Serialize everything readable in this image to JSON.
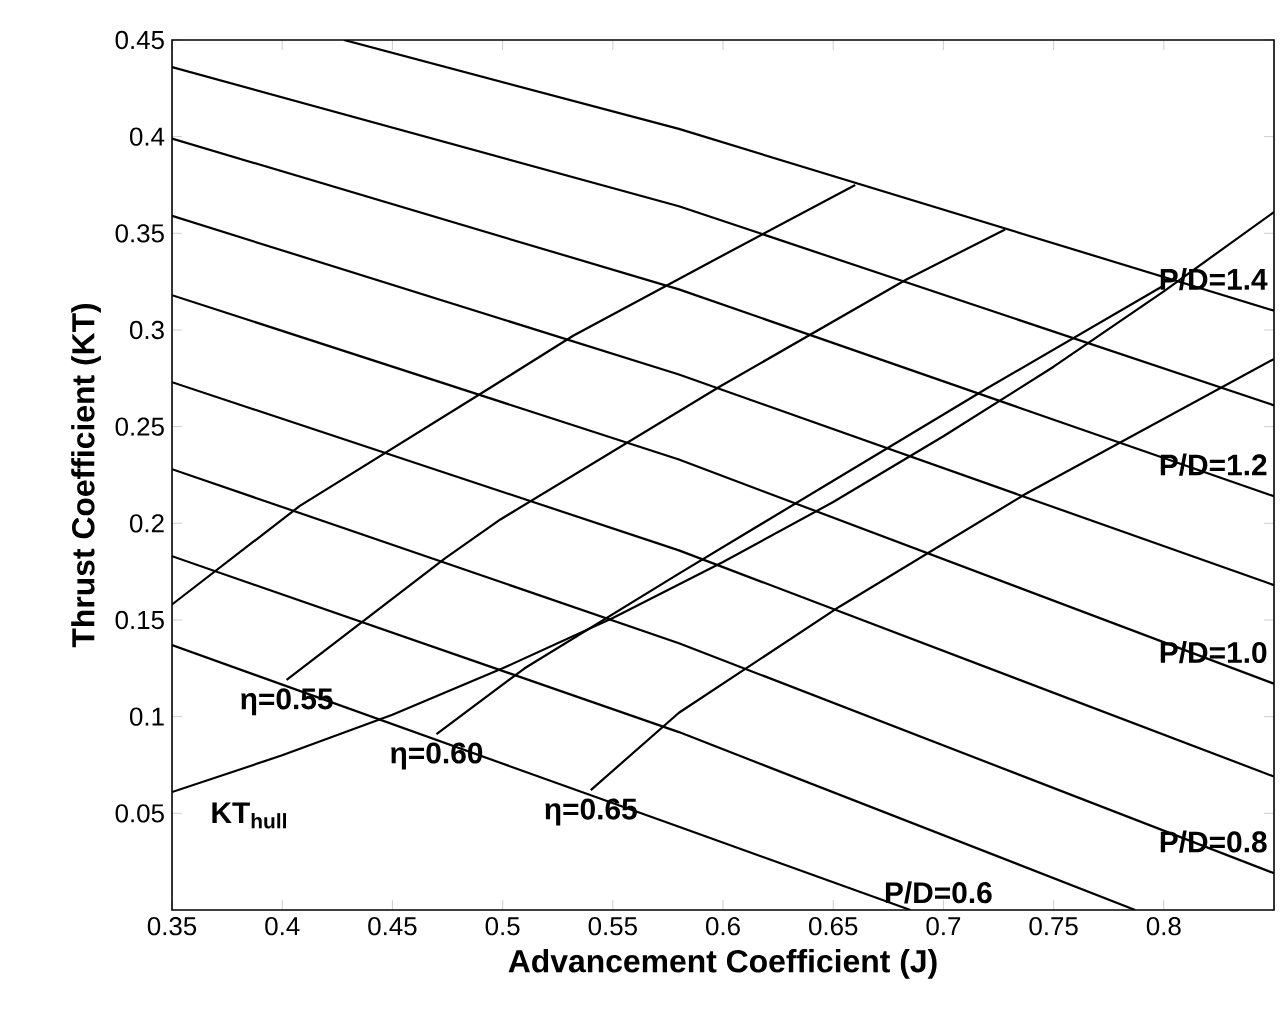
{
  "chart_data": {
    "type": "line",
    "xlabel": "Advancement Coefficient (J)",
    "ylabel": "Thrust Coefficient (KT)",
    "xlim": [
      0.35,
      0.85
    ],
    "ylim": [
      0,
      0.45
    ],
    "xticks": [
      0.35,
      0.4,
      0.45,
      0.5,
      0.55,
      0.6,
      0.65,
      0.7,
      0.75,
      0.8
    ],
    "yticks": [
      0.05,
      0.1,
      0.15,
      0.2,
      0.25,
      0.3,
      0.35,
      0.4,
      0.45
    ],
    "series": [
      {
        "name": "P/D=1.4",
        "color": "#000000",
        "x": [
          0.428,
          0.58,
          0.85
        ],
        "values": [
          0.45,
          0.404,
          0.31
        ]
      },
      {
        "color": "#000000",
        "x": [
          0.35,
          0.58,
          0.85
        ],
        "values": [
          0.436,
          0.364,
          0.261
        ]
      },
      {
        "name": "P/D=1.2",
        "color": "#000000",
        "x": [
          0.35,
          0.58,
          0.85
        ],
        "values": [
          0.399,
          0.321,
          0.214
        ]
      },
      {
        "color": "#000000",
        "x": [
          0.35,
          0.58,
          0.85
        ],
        "values": [
          0.359,
          0.277,
          0.168
        ]
      },
      {
        "name": "P/D=1.0",
        "color": "#000000",
        "x": [
          0.35,
          0.58,
          0.85
        ],
        "values": [
          0.318,
          0.233,
          0.117
        ]
      },
      {
        "color": "#000000",
        "x": [
          0.35,
          0.58,
          0.85
        ],
        "values": [
          0.273,
          0.186,
          0.069
        ]
      },
      {
        "name": "P/D=0.8",
        "color": "#000000",
        "x": [
          0.35,
          0.58,
          0.85
        ],
        "values": [
          0.228,
          0.138,
          0.019
        ]
      },
      {
        "color": "#000000",
        "x": [
          0.35,
          0.58,
          0.787
        ],
        "values": [
          0.183,
          0.092,
          0
        ]
      },
      {
        "name": "P/D=0.6",
        "color": "#000000",
        "x": [
          0.35,
          0.58,
          0.685
        ],
        "values": [
          0.137,
          0.043,
          0
        ]
      },
      {
        "color": "#000000",
        "x": [
          0.35,
          0.408,
          0.49,
          0.532,
          0.599,
          0.66
        ],
        "values": [
          0.158,
          0.209,
          0.267,
          0.297,
          0.338,
          0.375
        ]
      },
      {
        "name": "η=0.55",
        "color": "#000000",
        "x": [
          0.402,
          0.474,
          0.499,
          0.599,
          0.683,
          0.728
        ],
        "values": [
          0.119,
          0.182,
          0.202,
          0.271,
          0.326,
          0.352
        ]
      },
      {
        "name": "η=0.60",
        "color": "#000000",
        "x": [
          0.47,
          0.51,
          0.58,
          0.65,
          0.72,
          0.8
        ],
        "values": [
          0.091,
          0.125,
          0.174,
          0.222,
          0.27,
          0.323
        ]
      },
      {
        "name": "η=0.65",
        "color": "#000000",
        "x": [
          0.54,
          0.58,
          0.653,
          0.737,
          0.85
        ],
        "values": [
          0.062,
          0.102,
          0.157,
          0.215,
          0.285
        ]
      },
      {
        "name": "KT$_{hull}$",
        "color": "#000000",
        "x": [
          0.35,
          0.4,
          0.45,
          0.5,
          0.55,
          0.6,
          0.65,
          0.7,
          0.75,
          0.8,
          0.85
        ],
        "values": [
          0.061,
          0.08,
          0.101,
          0.125,
          0.151,
          0.18,
          0.211,
          0.245,
          0.281,
          0.32,
          0.361
        ]
      }
    ]
  }
}
